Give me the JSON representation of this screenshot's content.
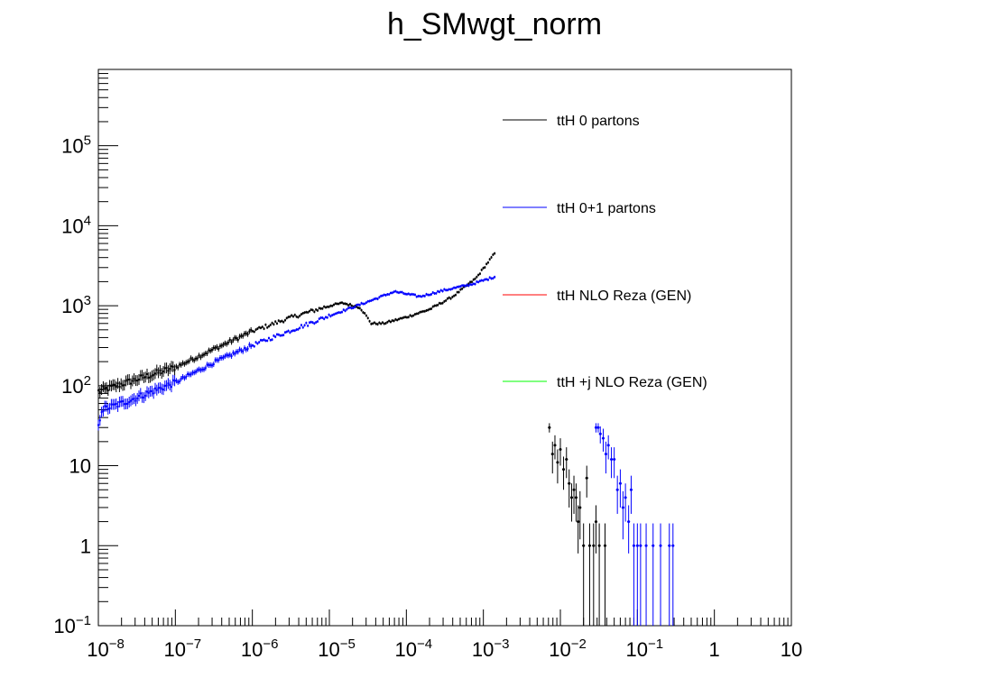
{
  "chart_data": {
    "type": "scatter",
    "title": "h_SMwgt_norm",
    "xlabel": "",
    "ylabel": "",
    "xscale": "log",
    "yscale": "log",
    "xlim": [
      1e-08,
      10
    ],
    "ylim": [
      0.1,
      900000
    ],
    "grid": false,
    "legend_position": "top-right",
    "x_tick_labels": [
      {
        "x": 1e-08,
        "base": "10",
        "exp": "−8"
      },
      {
        "x": 1e-07,
        "base": "10",
        "exp": "−7"
      },
      {
        "x": 1e-06,
        "base": "10",
        "exp": "−6"
      },
      {
        "x": 1e-05,
        "base": "10",
        "exp": "−5"
      },
      {
        "x": 0.0001,
        "base": "10",
        "exp": "−4"
      },
      {
        "x": 0.001,
        "base": "10",
        "exp": "−3"
      },
      {
        "x": 0.01,
        "base": "10",
        "exp": "−2"
      },
      {
        "x": 0.1,
        "base": "10",
        "exp": "−1"
      },
      {
        "x": 1,
        "base": "1",
        "exp": ""
      },
      {
        "x": 10,
        "base": "10",
        "exp": ""
      }
    ],
    "y_tick_labels": [
      {
        "y": 0.1,
        "base": "10",
        "exp": "−1"
      },
      {
        "y": 1,
        "base": "1",
        "exp": ""
      },
      {
        "y": 10,
        "base": "10",
        "exp": ""
      },
      {
        "y": 100,
        "base": "10",
        "exp": "2"
      },
      {
        "y": 1000,
        "base": "10",
        "exp": "3"
      },
      {
        "y": 10000,
        "base": "10",
        "exp": "4"
      },
      {
        "y": 100000,
        "base": "10",
        "exp": "5"
      }
    ],
    "series": [
      {
        "name": "ttH 0 partons",
        "color": "#000000",
        "trend": [
          [
            1e-08,
            85
          ],
          [
            1e-07,
            170
          ],
          [
            3e-07,
            280
          ],
          [
            1e-06,
            480
          ],
          [
            3e-06,
            700
          ],
          [
            1e-05,
            1000
          ],
          [
            1.5e-05,
            1080
          ],
          [
            2.5e-05,
            950
          ],
          [
            3e-05,
            750
          ],
          [
            3.5e-05,
            600
          ],
          [
            5e-05,
            600
          ],
          [
            0.0001,
            720
          ],
          [
            0.0002,
            900
          ],
          [
            0.0004,
            1300
          ],
          [
            0.0008,
            2200
          ],
          [
            0.0014,
            4500
          ]
        ],
        "points": [
          {
            "x": 0.0072,
            "y": 30,
            "err": 4
          },
          {
            "x": 0.0079,
            "y": 14,
            "err": 6
          },
          {
            "x": 0.0085,
            "y": 18,
            "err": 6
          },
          {
            "x": 0.0092,
            "y": 11,
            "err": 5
          },
          {
            "x": 0.01,
            "y": 16,
            "err": 6
          },
          {
            "x": 0.011,
            "y": 9,
            "err": 4
          },
          {
            "x": 0.012,
            "y": 12,
            "err": 5
          },
          {
            "x": 0.013,
            "y": 6,
            "err": 3
          },
          {
            "x": 0.014,
            "y": 4,
            "err": 2
          },
          {
            "x": 0.015,
            "y": 5,
            "err": 2.5
          },
          {
            "x": 0.016,
            "y": 4,
            "err": 2
          },
          {
            "x": 0.017,
            "y": 2,
            "err": 1.2
          },
          {
            "x": 0.018,
            "y": 3,
            "err": 1.8
          },
          {
            "x": 0.02,
            "y": 1,
            "err": 0.9
          },
          {
            "x": 0.022,
            "y": 7,
            "err": 3
          },
          {
            "x": 0.024,
            "y": 1,
            "err": 0.9
          },
          {
            "x": 0.027,
            "y": 1,
            "err": 0.9
          },
          {
            "x": 0.029,
            "y": 2,
            "err": 1.2
          },
          {
            "x": 0.032,
            "y": 1,
            "err": 0.9
          },
          {
            "x": 0.038,
            "y": 1,
            "err": 0.9
          }
        ]
      },
      {
        "name": "ttH 0+1 partons",
        "color": "#0000ff",
        "trend": [
          [
            1e-08,
            30
          ],
          [
            1.1e-08,
            50
          ],
          [
            2e-08,
            60
          ],
          [
            1e-07,
            110
          ],
          [
            3e-07,
            190
          ],
          [
            1e-06,
            320
          ],
          [
            3e-06,
            480
          ],
          [
            1e-05,
            750
          ],
          [
            3e-05,
            1100
          ],
          [
            7e-05,
            1500
          ],
          [
            0.00015,
            1300
          ],
          [
            0.0003,
            1550
          ],
          [
            0.0007,
            1850
          ],
          [
            0.0014,
            2300
          ]
        ],
        "points": [
          {
            "x": 0.029,
            "y": 30,
            "err": 4
          },
          {
            "x": 0.031,
            "y": 30,
            "err": 4
          },
          {
            "x": 0.033,
            "y": 25,
            "err": 6
          },
          {
            "x": 0.036,
            "y": 22,
            "err": 7
          },
          {
            "x": 0.039,
            "y": 14,
            "err": 6
          },
          {
            "x": 0.042,
            "y": 18,
            "err": 6
          },
          {
            "x": 0.046,
            "y": 12,
            "err": 5
          },
          {
            "x": 0.05,
            "y": 12,
            "err": 5
          },
          {
            "x": 0.055,
            "y": 5,
            "err": 2.5
          },
          {
            "x": 0.06,
            "y": 6,
            "err": 3
          },
          {
            "x": 0.065,
            "y": 3,
            "err": 1.8
          },
          {
            "x": 0.07,
            "y": 4,
            "err": 2
          },
          {
            "x": 0.077,
            "y": 2,
            "err": 1.2
          },
          {
            "x": 0.083,
            "y": 5,
            "err": 2.5
          },
          {
            "x": 0.09,
            "y": 1,
            "err": 0.9
          },
          {
            "x": 0.1,
            "y": 1,
            "err": 0.9
          },
          {
            "x": 0.11,
            "y": 1,
            "err": 0.9
          },
          {
            "x": 0.13,
            "y": 1,
            "err": 0.9
          },
          {
            "x": 0.16,
            "y": 1,
            "err": 0.9
          },
          {
            "x": 0.2,
            "y": 1,
            "err": 0.9
          },
          {
            "x": 0.26,
            "y": 1,
            "err": 0.9
          },
          {
            "x": 0.29,
            "y": 1,
            "err": 0.9
          }
        ]
      },
      {
        "name": "ttH NLO Reza (GEN)",
        "color": "#ff0000",
        "trend": [],
        "points": []
      },
      {
        "name": "ttH +j NLO Reza (GEN)",
        "color": "#00ff00",
        "trend": [],
        "points": []
      }
    ]
  }
}
